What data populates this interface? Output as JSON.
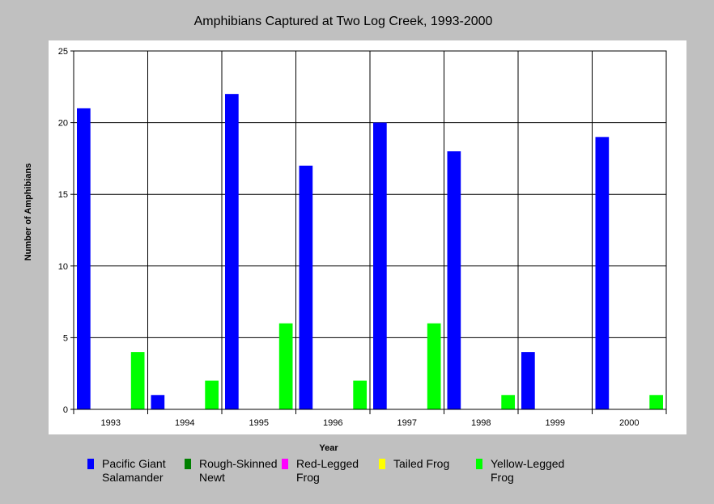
{
  "chart_data": {
    "type": "bar",
    "title": "Amphibians Captured at Two Log Creek, 1993-2000",
    "xlabel": "Year",
    "ylabel": "Number of Amphibians",
    "ylim": [
      0,
      25
    ],
    "yticks": [
      0,
      5,
      10,
      15,
      20,
      25
    ],
    "grid": true,
    "legend_position": "bottom",
    "categories": [
      "1993",
      "1994",
      "1995",
      "1996",
      "1997",
      "1998",
      "1999",
      "2000"
    ],
    "series": [
      {
        "name": "Pacific Giant Salamander",
        "color": "#0000ff",
        "values": [
          21,
          1,
          22,
          17,
          20,
          18,
          4,
          19
        ]
      },
      {
        "name": "Rough-Skinned Newt",
        "color": "#008000",
        "values": [
          0,
          0,
          0,
          0,
          0,
          0,
          0,
          0
        ]
      },
      {
        "name": "Red-Legged Frog",
        "color": "#ff00ff",
        "values": [
          0,
          0,
          0,
          0,
          0,
          0,
          0,
          0
        ]
      },
      {
        "name": "Tailed Frog",
        "color": "#ffff00",
        "values": [
          0,
          0,
          0,
          0,
          0,
          0,
          0,
          0
        ]
      },
      {
        "name": "Yellow-Legged Frog",
        "color": "#00ff00",
        "values": [
          4,
          2,
          6,
          2,
          6,
          1,
          0,
          1
        ]
      }
    ]
  }
}
